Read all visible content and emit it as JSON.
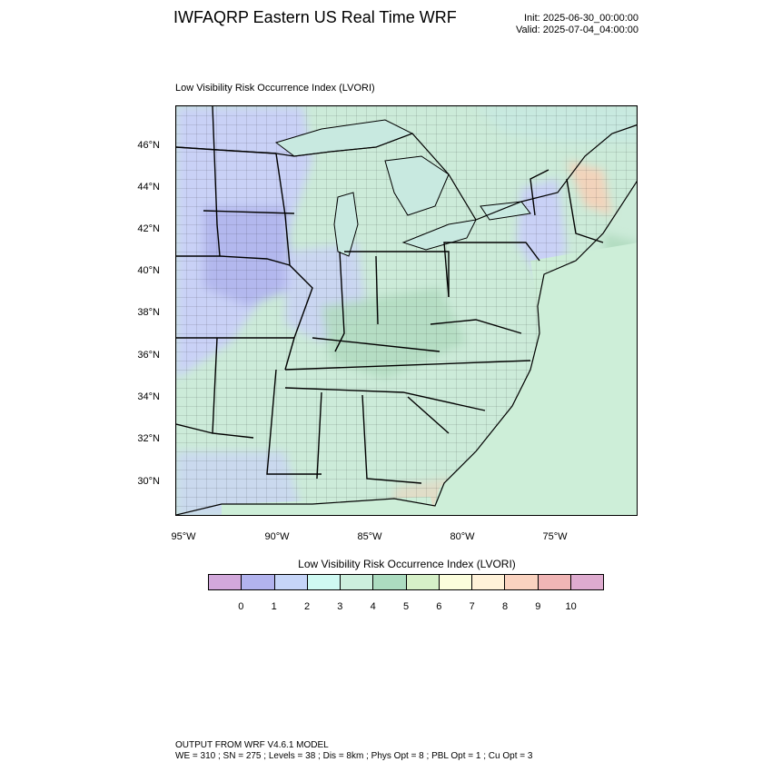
{
  "header": {
    "title": "IWFAQRP Eastern US Real Time WRF",
    "init": "Init: 2025-06-30_00:00:00",
    "valid": "Valid: 2025-07-04_04:00:00"
  },
  "map": {
    "subtitle": "Low Visibility Risk Occurrence Index   (LVORI)",
    "lat_labels": [
      "46°N",
      "44°N",
      "42°N",
      "40°N",
      "38°N",
      "36°N",
      "34°N",
      "32°N",
      "30°N"
    ],
    "lon_labels": [
      "95°W",
      "90°W",
      "85°W",
      "80°W",
      "75°W"
    ],
    "colors": {
      "land_background": "#ccebd9",
      "lake_water": "#c8e9e0",
      "ocean_base": "#cdeed8",
      "low_index": "#c9d1f6",
      "very_low_index": "#b3b8ee",
      "mid_index": "#b3dcc1",
      "high_index": "#f6d0b8",
      "boundary": "#000000"
    }
  },
  "legend": {
    "title": "Low Visibility Risk Occurrence Index  (LVORI)",
    "ticks": [
      "0",
      "1",
      "2",
      "3",
      "4",
      "5",
      "6",
      "7",
      "8",
      "9",
      "10"
    ],
    "colors": [
      "#d2a8db",
      "#b2b3ee",
      "#c6d5f8",
      "#cff9f2",
      "#ccefdd",
      "#acdcc0",
      "#d6f0c8",
      "#fbfddc",
      "#fff2d9",
      "#fad3c0",
      "#f0b5b5",
      "#deabcf"
    ]
  },
  "footer": {
    "line1": "OUTPUT FROM WRF V4.6.1 MODEL",
    "line2": "WE = 310 ; SN = 275 ; Levels = 38 ; Dis = 8km ; Phys Opt = 8 ; PBL Opt = 1 ; Cu Opt = 3"
  }
}
